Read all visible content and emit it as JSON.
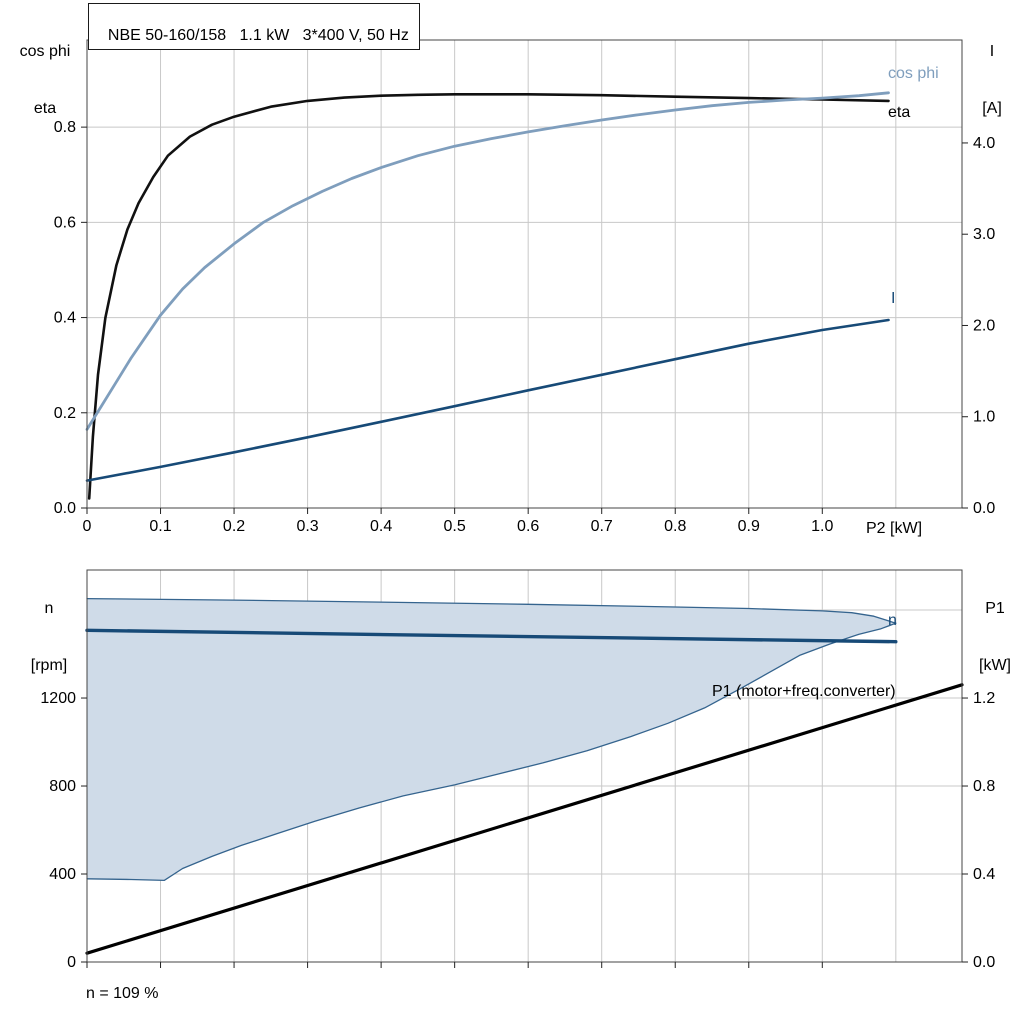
{
  "title": "NBE 50-160/158   1.1 kW   3*400 V, 50 Hz",
  "footer_note": "n = 109 %",
  "colors": {
    "eta": "#111111",
    "cos_phi": "#7f9ebd",
    "current": "#174a77",
    "n_line": "#174a77",
    "p1": "#000000",
    "band_fill": "#cfdbe8",
    "band_edge": "#35648e",
    "grid": "#c8c8c8",
    "frame": "#444444",
    "tick": "#222222"
  },
  "chart_data": [
    {
      "type": "line",
      "title": "NBE 50-160/158   1.1 kW   3*400 V, 50 Hz",
      "x_label": "P2 [kW]",
      "axis_left_title": [
        "cos phi",
        "eta"
      ],
      "axis_right_title": [
        "I",
        "[A]"
      ],
      "curve_labels": {
        "cos_phi": "cos phi",
        "eta": "eta",
        "current": "I"
      },
      "x_range": [
        0,
        1.19
      ],
      "x_gridlines": [
        0.1,
        0.2,
        0.3,
        0.4,
        0.5,
        0.6,
        0.7,
        0.8,
        0.9,
        1.0,
        1.1
      ],
      "x_ticks": [
        {
          "v": 0,
          "label": "0"
        },
        {
          "v": 0.1,
          "label": "0.1"
        },
        {
          "v": 0.2,
          "label": "0.2"
        },
        {
          "v": 0.3,
          "label": "0.3"
        },
        {
          "v": 0.4,
          "label": "0.4"
        },
        {
          "v": 0.5,
          "label": "0.5"
        },
        {
          "v": 0.6,
          "label": "0.6"
        },
        {
          "v": 0.7,
          "label": "0.7"
        },
        {
          "v": 0.8,
          "label": "0.8"
        },
        {
          "v": 0.9,
          "label": "0.9"
        },
        {
          "v": 1.0,
          "label": "1.0"
        }
      ],
      "y_left_range": [
        0,
        0.983
      ],
      "y_left_gridlines": [
        0.2,
        0.4,
        0.6,
        0.8
      ],
      "y_left_ticks": [
        {
          "v": 0,
          "label": "0.0"
        },
        {
          "v": 0.2,
          "label": "0.2"
        },
        {
          "v": 0.4,
          "label": "0.4"
        },
        {
          "v": 0.6,
          "label": "0.6"
        },
        {
          "v": 0.8,
          "label": "0.8"
        }
      ],
      "y_right_range": [
        0,
        5.128
      ],
      "y_right_ticks": [
        {
          "v": 0,
          "label": "0.0"
        },
        {
          "v": 1,
          "label": "1.0"
        },
        {
          "v": 2,
          "label": "2.0"
        },
        {
          "v": 3,
          "label": "3.0"
        },
        {
          "v": 4,
          "label": "4.0"
        }
      ],
      "series": [
        {
          "id": "eta",
          "name": "eta",
          "axis": "left",
          "color_key": "eta",
          "width": 2.6,
          "points": [
            [
              0.003,
              0.02
            ],
            [
              0.008,
              0.15
            ],
            [
              0.015,
              0.28
            ],
            [
              0.025,
              0.4
            ],
            [
              0.04,
              0.51
            ],
            [
              0.055,
              0.585
            ],
            [
              0.07,
              0.64
            ],
            [
              0.09,
              0.695
            ],
            [
              0.11,
              0.74
            ],
            [
              0.14,
              0.78
            ],
            [
              0.17,
              0.805
            ],
            [
              0.2,
              0.822
            ],
            [
              0.25,
              0.843
            ],
            [
              0.3,
              0.855
            ],
            [
              0.35,
              0.862
            ],
            [
              0.4,
              0.866
            ],
            [
              0.45,
              0.868
            ],
            [
              0.5,
              0.869
            ],
            [
              0.55,
              0.869
            ],
            [
              0.6,
              0.869
            ],
            [
              0.7,
              0.867
            ],
            [
              0.8,
              0.864
            ],
            [
              0.9,
              0.861
            ],
            [
              1.0,
              0.858
            ],
            [
              1.09,
              0.855
            ]
          ]
        },
        {
          "id": "cos-phi",
          "name": "cos phi",
          "axis": "left",
          "color_key": "cos_phi",
          "width": 2.8,
          "points": [
            [
              0.0,
              0.165
            ],
            [
              0.02,
              0.215
            ],
            [
              0.04,
              0.265
            ],
            [
              0.06,
              0.315
            ],
            [
              0.08,
              0.36
            ],
            [
              0.1,
              0.405
            ],
            [
              0.13,
              0.46
            ],
            [
              0.16,
              0.505
            ],
            [
              0.2,
              0.555
            ],
            [
              0.24,
              0.6
            ],
            [
              0.28,
              0.635
            ],
            [
              0.32,
              0.665
            ],
            [
              0.36,
              0.692
            ],
            [
              0.4,
              0.715
            ],
            [
              0.45,
              0.74
            ],
            [
              0.5,
              0.76
            ],
            [
              0.55,
              0.776
            ],
            [
              0.6,
              0.79
            ],
            [
              0.65,
              0.803
            ],
            [
              0.7,
              0.815
            ],
            [
              0.75,
              0.826
            ],
            [
              0.8,
              0.836
            ],
            [
              0.85,
              0.845
            ],
            [
              0.9,
              0.852
            ],
            [
              0.95,
              0.857
            ],
            [
              1.0,
              0.861
            ],
            [
              1.05,
              0.866
            ],
            [
              1.09,
              0.872
            ]
          ]
        },
        {
          "id": "current",
          "name": "I",
          "axis": "right",
          "color_key": "current",
          "width": 2.6,
          "points": [
            [
              0.0,
              0.3
            ],
            [
              0.1,
              0.45
            ],
            [
              0.2,
              0.61
            ],
            [
              0.3,
              0.775
            ],
            [
              0.4,
              0.945
            ],
            [
              0.5,
              1.115
            ],
            [
              0.6,
              1.29
            ],
            [
              0.7,
              1.46
            ],
            [
              0.8,
              1.63
            ],
            [
              0.9,
              1.8
            ],
            [
              1.0,
              1.95
            ],
            [
              1.09,
              2.06
            ]
          ]
        }
      ]
    },
    {
      "type": "line",
      "axis_left_title": [
        "n",
        "[rpm]"
      ],
      "axis_right_title": [
        "P1",
        "[kW]"
      ],
      "annotation_p1": "P1 (motor+freq.converter)",
      "annotation_n": "n",
      "x_range": [
        0,
        1.19
      ],
      "x_gridlines": [
        0.1,
        0.2,
        0.3,
        0.4,
        0.5,
        0.6,
        0.7,
        0.8,
        0.9,
        1.0,
        1.1
      ],
      "x_ticks": [
        {
          "v": 0
        },
        {
          "v": 0.1
        },
        {
          "v": 0.2
        },
        {
          "v": 0.3
        },
        {
          "v": 0.4
        },
        {
          "v": 0.5
        },
        {
          "v": 0.6
        },
        {
          "v": 0.7
        },
        {
          "v": 0.8
        },
        {
          "v": 0.9
        },
        {
          "v": 1.0
        }
      ],
      "y_left_range": [
        0,
        1782
      ],
      "y_left_gridlines": [
        400,
        800,
        1200,
        1600
      ],
      "y_left_ticks": [
        {
          "v": 0,
          "label": "0"
        },
        {
          "v": 400,
          "label": "400"
        },
        {
          "v": 800,
          "label": "800"
        },
        {
          "v": 1200,
          "label": "1200"
        }
      ],
      "y_right_range": [
        0,
        1.782
      ],
      "y_right_ticks": [
        {
          "v": 0,
          "label": "0.0"
        },
        {
          "v": 0.4,
          "label": "0.4"
        },
        {
          "v": 0.8,
          "label": "0.8"
        },
        {
          "v": 1.2,
          "label": "1.2"
        }
      ],
      "band": {
        "upper": [
          [
            0,
            1652
          ],
          [
            0.2,
            1645
          ],
          [
            0.4,
            1636
          ],
          [
            0.6,
            1626
          ],
          [
            0.8,
            1614
          ],
          [
            0.9,
            1607
          ],
          [
            1.0,
            1596
          ],
          [
            1.04,
            1588
          ],
          [
            1.07,
            1572
          ],
          [
            1.1,
            1540
          ]
        ],
        "lower": [
          [
            0,
            378
          ],
          [
            0.06,
            375
          ],
          [
            0.105,
            371
          ],
          [
            0.13,
            425
          ],
          [
            0.17,
            480
          ],
          [
            0.21,
            530
          ],
          [
            0.26,
            585
          ],
          [
            0.31,
            640
          ],
          [
            0.37,
            700
          ],
          [
            0.43,
            755
          ],
          [
            0.5,
            805
          ],
          [
            0.56,
            855
          ],
          [
            0.62,
            905
          ],
          [
            0.68,
            960
          ],
          [
            0.74,
            1025
          ],
          [
            0.79,
            1085
          ],
          [
            0.84,
            1155
          ],
          [
            0.89,
            1245
          ],
          [
            0.93,
            1320
          ],
          [
            0.97,
            1395
          ],
          [
            1.01,
            1445
          ],
          [
            1.05,
            1490
          ],
          [
            1.08,
            1515
          ],
          [
            1.1,
            1540
          ]
        ]
      },
      "series": [
        {
          "id": "n",
          "name": "n",
          "axis": "left",
          "color_key": "n_line",
          "width": 3.4,
          "points": [
            [
              0,
              1508
            ],
            [
              0.5,
              1484
            ],
            [
              1.1,
              1456
            ]
          ]
        },
        {
          "id": "p1",
          "name": "P1 (motor+freq.converter)",
          "axis": "right",
          "color_key": "p1",
          "width": 3.2,
          "points": [
            [
              0,
              0.04
            ],
            [
              1.19,
              1.26
            ]
          ]
        }
      ]
    }
  ]
}
